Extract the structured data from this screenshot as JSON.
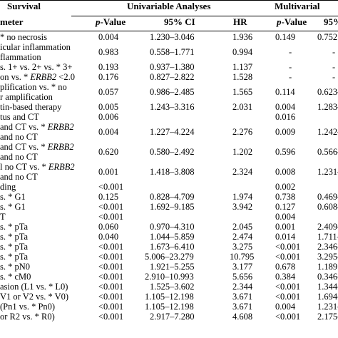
{
  "header": {
    "group_left": "Survival",
    "group_uni": "Univariable Analyses",
    "group_multi": "Multivarial",
    "col_param": "meter",
    "col_p_prefix": "p",
    "col_p_suffix": "-Value",
    "col_ci": "95% CI",
    "col_hr": "HR",
    "col_p2_prefix": "p",
    "col_p2_suffix": "-Value",
    "col_ci2": "95%"
  },
  "rows": [
    {
      "label": [
        "* no necrosis"
      ],
      "p": "0.004",
      "ci": "1.230–3.046",
      "hr": "1.936",
      "p2": "0.149",
      "ci2": "0.752"
    },
    {
      "label": [
        "icular inflammation",
        "flammation"
      ],
      "p": "0.983",
      "ci": "0.558–1.771",
      "hr": "0.994",
      "p2": "-",
      "ci2": "-"
    },
    {
      "label": [
        "s. 1+ vs. 2+ vs. * 3+"
      ],
      "p": "0.193",
      "ci": "0.937–1.380",
      "hr": "1.137",
      "p2": "-",
      "ci2": "-"
    },
    {
      "label": [
        "on vs. * ",
        "ERBB2",
        " <2.0"
      ],
      "p": "0.176",
      "ci": "0.827–2.822",
      "hr": "1.528",
      "p2": "-",
      "ci2": "-"
    },
    {
      "label": [
        "plification vs. * no",
        "r amplification"
      ],
      "p": "0.057",
      "ci": "0.986–2.485",
      "hr": "1.565",
      "p2": "0.114",
      "ci2": "0.623–"
    },
    {
      "label": [
        "tin-based therapy"
      ],
      "p": "0.005",
      "ci": "1.243–3.316",
      "hr": "2.031",
      "p2": "0.004",
      "ci2": "1.283–"
    },
    {
      "label": [
        "tus and CT"
      ],
      "p": "0.006",
      "ci": "",
      "hr": "",
      "p2": "0.016",
      "ci2": ""
    },
    {
      "label": [
        "and CT vs. * ",
        "ERBB2",
        "and no CT"
      ],
      "p": "0.004",
      "ci": "1.227–4.224",
      "hr": "2.276",
      "p2": "0.009",
      "ci2": "1.242–"
    },
    {
      "label": [
        "and CT vs. * ",
        "ERBB2",
        "and no CT"
      ],
      "p": "0.620",
      "ci": "0.580–2.492",
      "hr": "1.202",
      "p2": "0.596",
      "ci2": "0.566–"
    },
    {
      "label": [
        "l no CT vs. * ",
        "ERBB2",
        "and no CT"
      ],
      "p": "0.001",
      "ci": "1.418–3.808",
      "hr": "2.324",
      "p2": "0.008",
      "ci2": "1.231–"
    },
    {
      "label": [
        "ding"
      ],
      "p": "<0.001",
      "ci": "",
      "hr": "",
      "p2": "0.002",
      "ci2": ""
    },
    {
      "label": [
        "s. * G1"
      ],
      "p": "0.125",
      "ci": "0.828–4.709",
      "hr": "1.974",
      "p2": "0.738",
      "ci2": "0.469–"
    },
    {
      "label": [
        "s. * G1"
      ],
      "p": "<0.001",
      "ci": "1.692–9.185",
      "hr": "3.942",
      "p2": "0.127",
      "ci2": "0.608–"
    },
    {
      "label": [
        "T"
      ],
      "p": "<0.001",
      "ci": "",
      "hr": "",
      "p2": "0.004",
      "ci2": ""
    },
    {
      "label": [
        "s. * pTa"
      ],
      "p": "0.060",
      "ci": "0.970–4.310",
      "hr": "2.045",
      "p2": "0.001",
      "ci2": "2.409–"
    },
    {
      "label": [
        "s. * pTa"
      ],
      "p": "0.040",
      "ci": "1.044–5.859",
      "hr": "2.474",
      "p2": "0.014",
      "ci2": "1.711–"
    },
    {
      "label": [
        "s. * pTa"
      ],
      "p": "<0.001",
      "ci": "1.673–6.410",
      "hr": "3.275",
      "p2": "<0.001",
      "ci2": "2.346–"
    },
    {
      "label": [
        "s. * pTa"
      ],
      "p": "<0.001",
      "ci": "5.006–23.279",
      "hr": "10.795",
      "p2": "<0.001",
      "ci2": "3.295–"
    },
    {
      "label": [
        "s. * pN0"
      ],
      "p": "<0.001",
      "ci": "1.921–5.255",
      "hr": "3.177",
      "p2": "0.678",
      "ci2": "1.189"
    },
    {
      "label": [
        "s. * cM0"
      ],
      "p": "<0.001",
      "ci": "2.910–10.993",
      "hr": "5.656",
      "p2": "0.384",
      "ci2": "0.346–"
    },
    {
      "label": [
        "asion (L1 vs. * L0)"
      ],
      "p": "<0.001",
      "ci": "1.525–3.602",
      "hr": "2.344",
      "p2": "<0.001",
      "ci2": "1.344–"
    },
    {
      "label": [
        "V1 or V2 vs. * V0)"
      ],
      "p": "<0.001",
      "ci": "1.105–12.198",
      "hr": "3.671",
      "p2": "<0.001",
      "ci2": "1.694–"
    },
    {
      "label": [
        "(Pn1 vs. * Pn0)"
      ],
      "p": "<0.001",
      "ci": "1.105–12.198",
      "hr": "3.671",
      "p2": "0.004",
      "ci2": "1.231–"
    },
    {
      "label": [
        "or R2 vs. * R0)"
      ],
      "p": "<0.001",
      "ci": "2.917–7.280",
      "hr": "4.608",
      "p2": "<0.001",
      "ci2": "2.175–"
    }
  ]
}
